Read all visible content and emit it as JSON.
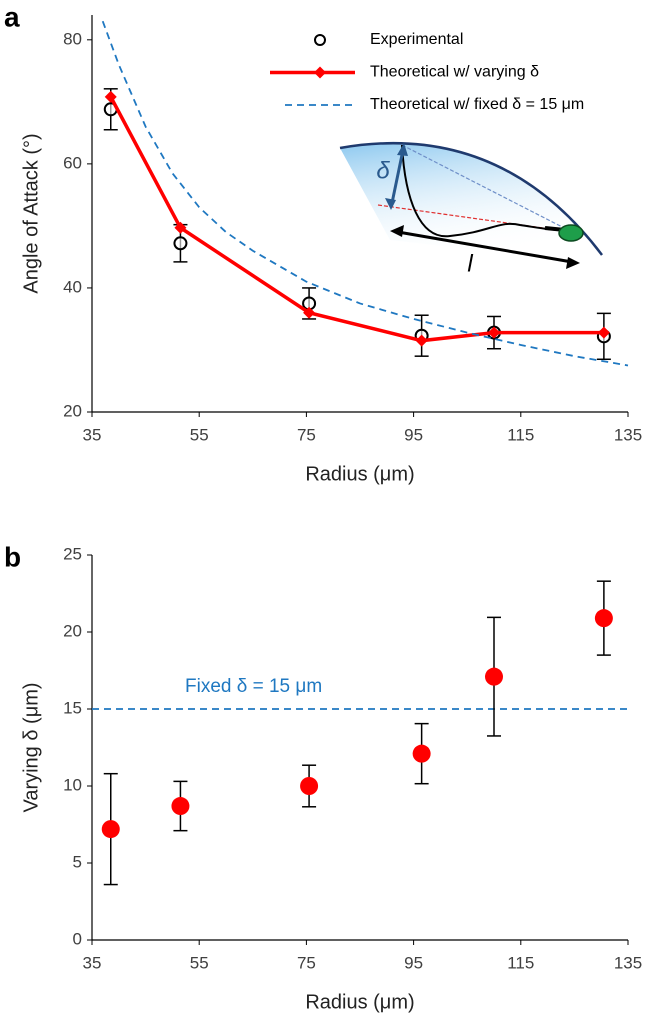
{
  "chart_data": [
    {
      "type": "line",
      "panel_label": "a",
      "xlabel": "Radius (μm)",
      "ylabel": "Angle of Attack (°)",
      "xlim": [
        35,
        135
      ],
      "xticks": [
        35,
        55,
        75,
        95,
        115,
        135
      ],
      "ylim": [
        20,
        84
      ],
      "yticks": [
        20,
        40,
        60,
        80
      ],
      "legend": "top-right",
      "series": [
        {
          "name": "Experimental",
          "color": "#000000",
          "style": "open-circle",
          "x": [
            38.5,
            51.5,
            75.5,
            96.5,
            110,
            130.5
          ],
          "values": [
            68.8,
            47.2,
            37.5,
            32.3,
            32.8,
            32.2
          ],
          "errors": [
            3.3,
            3,
            2.5,
            3.3,
            2.6,
            3.7
          ]
        },
        {
          "name": "Theoretical w/ varying δ",
          "color": "#ff0000",
          "style": "line-diamond",
          "x": [
            38.5,
            51.5,
            75.5,
            96.5,
            110,
            130.5
          ],
          "values": [
            70.8,
            49.7,
            36,
            31.5,
            32.8,
            32.8
          ]
        },
        {
          "name": "Theoretical w/ fixed δ = 15 μm",
          "color": "#1f78c1",
          "style": "dashed",
          "x": [
            37,
            40,
            45,
            50,
            55,
            60,
            65,
            70,
            75,
            85,
            95,
            105,
            115,
            125,
            135
          ],
          "values": [
            83,
            76,
            66,
            58.5,
            53,
            49,
            46,
            43.5,
            41,
            37.5,
            35,
            32.8,
            30.8,
            29,
            27.5
          ]
        }
      ],
      "annotations": [
        "δ",
        "l"
      ]
    },
    {
      "type": "scatter",
      "panel_label": "b",
      "xlabel": "Radius (μm)",
      "ylabel": "Varying δ (μm)",
      "xlim": [
        35,
        135
      ],
      "xticks": [
        35,
        55,
        75,
        95,
        115,
        135
      ],
      "ylim": [
        0,
        25
      ],
      "yticks": [
        0,
        5,
        10,
        15,
        20,
        25
      ],
      "series": [
        {
          "color": "#ff0000",
          "style": "dot",
          "x": [
            38.5,
            51.5,
            75.5,
            96.5,
            110,
            130.5
          ],
          "values": [
            7.2,
            8.7,
            10,
            12.1,
            17.1,
            20.9
          ],
          "errors": [
            3.6,
            1.6,
            1.35,
            1.95,
            3.85,
            2.4
          ]
        }
      ],
      "reference_line": {
        "value": 15,
        "label": "Fixed δ = 15 μm",
        "color": "#1f78c1"
      }
    }
  ]
}
